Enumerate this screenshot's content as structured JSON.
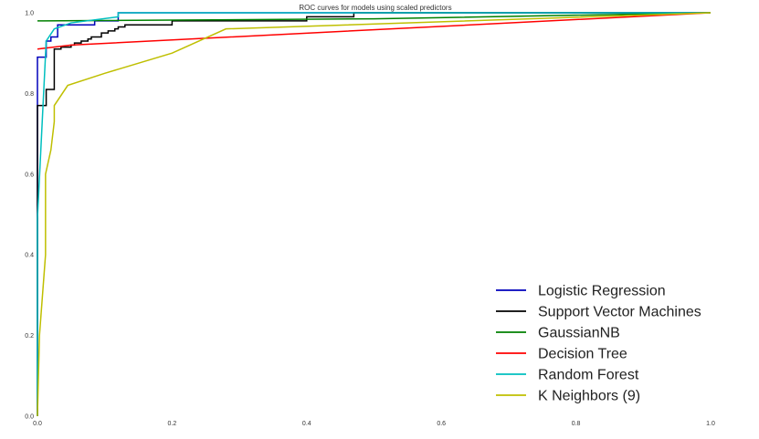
{
  "chart_data": {
    "type": "line",
    "title": "ROC curves for models using scaled predictors",
    "xlabel": "",
    "ylabel": "",
    "xlim": [
      0.0,
      1.0
    ],
    "ylim": [
      0.0,
      1.0
    ],
    "x_ticks": [
      "0.0",
      "0.2",
      "0.4",
      "0.6",
      "0.8",
      "1.0"
    ],
    "y_ticks": [
      "0.0",
      "0.2",
      "0.4",
      "0.6",
      "0.8",
      "1.0"
    ],
    "grid": false,
    "legend_position": "bottom-right",
    "series": [
      {
        "name": "Logistic Regression",
        "color": "#0000bb",
        "points": [
          [
            0.0,
            0.0
          ],
          [
            0.0,
            0.89
          ],
          [
            0.013,
            0.89
          ],
          [
            0.013,
            0.93
          ],
          [
            0.02,
            0.93
          ],
          [
            0.02,
            0.94
          ],
          [
            0.03,
            0.94
          ],
          [
            0.03,
            0.97
          ],
          [
            0.085,
            0.97
          ],
          [
            0.085,
            0.98
          ],
          [
            0.12,
            0.98
          ],
          [
            0.12,
            1.0
          ],
          [
            1.0,
            1.0
          ]
        ]
      },
      {
        "name": "Support Vector Machines",
        "color": "#000000",
        "points": [
          [
            0.0,
            0.0
          ],
          [
            0.0,
            0.77
          ],
          [
            0.013,
            0.77
          ],
          [
            0.013,
            0.81
          ],
          [
            0.025,
            0.81
          ],
          [
            0.025,
            0.91
          ],
          [
            0.035,
            0.91
          ],
          [
            0.035,
            0.915
          ],
          [
            0.05,
            0.915
          ],
          [
            0.05,
            0.92
          ],
          [
            0.055,
            0.92
          ],
          [
            0.055,
            0.925
          ],
          [
            0.065,
            0.925
          ],
          [
            0.065,
            0.93
          ],
          [
            0.075,
            0.93
          ],
          [
            0.075,
            0.935
          ],
          [
            0.08,
            0.935
          ],
          [
            0.08,
            0.94
          ],
          [
            0.095,
            0.94
          ],
          [
            0.095,
            0.95
          ],
          [
            0.105,
            0.95
          ],
          [
            0.105,
            0.955
          ],
          [
            0.115,
            0.955
          ],
          [
            0.115,
            0.96
          ],
          [
            0.12,
            0.96
          ],
          [
            0.12,
            0.965
          ],
          [
            0.13,
            0.965
          ],
          [
            0.13,
            0.97
          ],
          [
            0.2,
            0.97
          ],
          [
            0.2,
            0.98
          ],
          [
            0.4,
            0.98
          ],
          [
            0.4,
            0.99
          ],
          [
            0.47,
            0.99
          ],
          [
            0.47,
            1.0
          ],
          [
            1.0,
            1.0
          ]
        ]
      },
      {
        "name": "GaussianNB",
        "color": "#008000",
        "points": [
          [
            0.0,
            0.98
          ],
          [
            0.01,
            0.98
          ],
          [
            0.5,
            0.985
          ],
          [
            1.0,
            1.0
          ]
        ]
      },
      {
        "name": "Decision Tree",
        "color": "#ff0000",
        "points": [
          [
            0.0,
            0.91
          ],
          [
            0.05,
            0.92
          ],
          [
            1.0,
            1.0
          ]
        ]
      },
      {
        "name": "Random Forest",
        "color": "#00bfbf",
        "points": [
          [
            0.0,
            0.0
          ],
          [
            0.0,
            0.49
          ],
          [
            0.013,
            0.93
          ],
          [
            0.025,
            0.96
          ],
          [
            0.05,
            0.975
          ],
          [
            0.12,
            0.99
          ],
          [
            0.12,
            1.0
          ],
          [
            1.0,
            1.0
          ]
        ]
      },
      {
        "name": "K Neighbors (9)",
        "color": "#bfbf00",
        "points": [
          [
            0.0,
            0.0
          ],
          [
            0.003,
            0.2
          ],
          [
            0.012,
            0.4
          ],
          [
            0.012,
            0.6
          ],
          [
            0.02,
            0.66
          ],
          [
            0.025,
            0.73
          ],
          [
            0.025,
            0.77
          ],
          [
            0.045,
            0.82
          ],
          [
            0.1,
            0.85
          ],
          [
            0.2,
            0.9
          ],
          [
            0.28,
            0.96
          ],
          [
            1.0,
            1.0
          ]
        ]
      }
    ]
  }
}
